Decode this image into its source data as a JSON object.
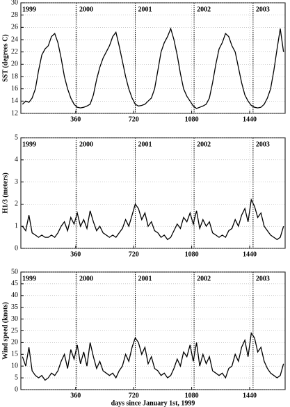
{
  "chart_data": [
    {
      "type": "line",
      "y_label": "SST (degrees C)",
      "color": "#000000",
      "grid": true,
      "xlim": [
        20,
        1660
      ],
      "xticks": [
        360,
        720,
        1080,
        1440
      ],
      "ylim": [
        12,
        30
      ],
      "yticks": [
        12,
        14,
        16,
        18,
        20,
        22,
        24,
        26,
        28,
        30
      ],
      "year_lines": [
        365,
        730,
        1095,
        1461
      ],
      "year_labels": [
        "1999",
        "2000",
        "2001",
        "2002",
        "2003"
      ],
      "x": [
        30,
        50,
        70,
        90,
        110,
        130,
        150,
        170,
        190,
        210,
        230,
        250,
        270,
        290,
        310,
        330,
        350,
        370,
        390,
        410,
        430,
        450,
        470,
        490,
        510,
        530,
        550,
        570,
        590,
        610,
        630,
        650,
        670,
        690,
        710,
        730,
        750,
        770,
        790,
        810,
        830,
        850,
        870,
        890,
        910,
        930,
        950,
        970,
        990,
        1010,
        1030,
        1050,
        1070,
        1090,
        1110,
        1130,
        1150,
        1170,
        1190,
        1210,
        1230,
        1250,
        1270,
        1290,
        1310,
        1330,
        1350,
        1370,
        1390,
        1410,
        1430,
        1450,
        1470,
        1490,
        1510,
        1530,
        1550,
        1570,
        1590,
        1610,
        1630,
        1650
      ],
      "values": [
        13.5,
        14,
        13.8,
        14.5,
        16,
        19,
        21.5,
        22.5,
        23,
        24.5,
        25,
        23.5,
        21,
        18,
        16,
        14.5,
        13.5,
        13,
        12.9,
        13,
        13.2,
        13.5,
        15,
        17.5,
        19.5,
        21,
        22,
        23,
        24.5,
        25.2,
        23,
        20.5,
        18,
        16,
        14.5,
        13.5,
        13.2,
        13.3,
        13.5,
        14,
        14.5,
        16,
        19,
        22,
        23.5,
        24.5,
        25.8,
        24,
        21.5,
        18.5,
        16,
        14.8,
        14,
        13.2,
        12.8,
        13,
        13.2,
        13.5,
        14.5,
        17,
        20,
        22.5,
        23.5,
        25,
        24.5,
        23,
        22,
        19.5,
        17,
        15,
        14,
        13.3,
        13,
        12.9,
        13,
        13.5,
        14.5,
        16,
        19,
        22.5,
        25.8,
        22
      ]
    },
    {
      "type": "line",
      "y_label": "H1/3 (meters)",
      "color": "#000000",
      "grid": true,
      "xlim": [
        20,
        1660
      ],
      "xticks": [
        360,
        720,
        1080,
        1440
      ],
      "ylim": [
        0,
        5
      ],
      "yticks": [
        0,
        1,
        2,
        3,
        4,
        5
      ],
      "year_lines": [
        365,
        730,
        1095,
        1461
      ],
      "year_labels": [
        "1999",
        "2000",
        "2001",
        "2002",
        "2003"
      ],
      "x": [
        30,
        50,
        70,
        90,
        110,
        130,
        150,
        170,
        190,
        210,
        230,
        250,
        270,
        290,
        310,
        330,
        350,
        370,
        390,
        410,
        430,
        450,
        470,
        490,
        510,
        530,
        550,
        570,
        590,
        610,
        630,
        650,
        670,
        690,
        710,
        730,
        750,
        770,
        790,
        810,
        830,
        850,
        870,
        890,
        910,
        930,
        950,
        970,
        990,
        1010,
        1030,
        1050,
        1070,
        1090,
        1110,
        1130,
        1150,
        1170,
        1190,
        1210,
        1230,
        1250,
        1270,
        1290,
        1310,
        1330,
        1350,
        1370,
        1390,
        1410,
        1430,
        1450,
        1470,
        1490,
        1510,
        1530,
        1550,
        1570,
        1590,
        1610,
        1630,
        1650
      ],
      "values": [
        1.0,
        0.8,
        1.5,
        0.7,
        0.6,
        0.5,
        0.6,
        0.5,
        0.5,
        0.6,
        0.5,
        0.7,
        1.0,
        1.2,
        0.8,
        1.4,
        1.1,
        1.6,
        1.0,
        1.3,
        0.9,
        1.7,
        1.2,
        0.8,
        1.0,
        0.7,
        0.6,
        0.5,
        0.6,
        0.5,
        0.7,
        0.9,
        1.3,
        1.0,
        1.5,
        2.0,
        1.8,
        1.3,
        1.6,
        1.0,
        1.2,
        0.8,
        0.7,
        0.5,
        0.6,
        0.4,
        0.5,
        0.8,
        1.1,
        0.9,
        1.4,
        1.2,
        1.6,
        1.1,
        1.7,
        0.9,
        1.3,
        1.0,
        1.2,
        0.7,
        0.6,
        0.5,
        0.6,
        0.5,
        0.8,
        0.9,
        1.3,
        1.0,
        1.5,
        1.8,
        1.2,
        2.2,
        1.9,
        1.4,
        1.6,
        1.0,
        0.8,
        0.6,
        0.5,
        0.4,
        0.5,
        1.0
      ]
    },
    {
      "type": "line",
      "y_label": "Wind speed (knots)",
      "x_label": "days since January 1st, 1999",
      "color": "#000000",
      "grid": true,
      "xlim": [
        20,
        1660
      ],
      "xticks": [
        360,
        720,
        1080,
        1440
      ],
      "ylim": [
        0,
        50
      ],
      "yticks": [
        0,
        5,
        10,
        15,
        20,
        25,
        30,
        35,
        40,
        45,
        50
      ],
      "year_lines": [
        365,
        730,
        1095,
        1461
      ],
      "year_labels": [
        "1999",
        "2000",
        "2001",
        "2002",
        "2003"
      ],
      "x": [
        30,
        50,
        70,
        90,
        110,
        130,
        150,
        170,
        190,
        210,
        230,
        250,
        270,
        290,
        310,
        330,
        350,
        370,
        390,
        410,
        430,
        450,
        470,
        490,
        510,
        530,
        550,
        570,
        590,
        610,
        630,
        650,
        670,
        690,
        710,
        730,
        750,
        770,
        790,
        810,
        830,
        850,
        870,
        890,
        910,
        930,
        950,
        970,
        990,
        1010,
        1030,
        1050,
        1070,
        1090,
        1110,
        1130,
        1150,
        1170,
        1190,
        1210,
        1230,
        1250,
        1270,
        1290,
        1310,
        1330,
        1350,
        1370,
        1390,
        1410,
        1430,
        1450,
        1470,
        1490,
        1510,
        1530,
        1550,
        1570,
        1590,
        1610,
        1630,
        1650
      ],
      "values": [
        14,
        10,
        18,
        8,
        6,
        5,
        6,
        4,
        5,
        7,
        6,
        8,
        12,
        15,
        9,
        17,
        13,
        19,
        11,
        16,
        10,
        20,
        14,
        9,
        12,
        8,
        7,
        6,
        7,
        5,
        8,
        10,
        15,
        12,
        18,
        22,
        20,
        15,
        18,
        11,
        14,
        9,
        8,
        6,
        7,
        5,
        6,
        9,
        13,
        10,
        16,
        14,
        19,
        12,
        20,
        10,
        15,
        11,
        14,
        8,
        7,
        6,
        7,
        5,
        9,
        10,
        15,
        12,
        18,
        21,
        14,
        24,
        22,
        16,
        18,
        12,
        9,
        7,
        6,
        5,
        6,
        11
      ]
    }
  ]
}
